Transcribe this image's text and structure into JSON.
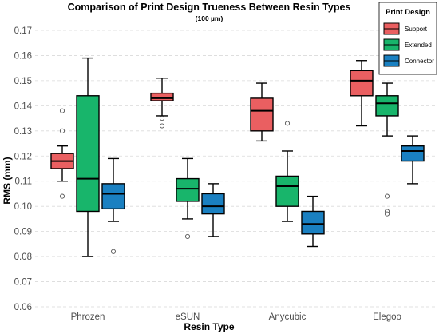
{
  "chart_data": {
    "type": "boxplot",
    "title": "Comparison of Print Design Trueness Between Resin Types",
    "subtitle": "(100 µm)",
    "xlabel": "Resin Type",
    "ylabel": "RMS (mm)",
    "ylim": [
      0.06,
      0.17
    ],
    "yticks": [
      "0.06",
      "0.07",
      "0.08",
      "0.09",
      "0.10",
      "0.11",
      "0.12",
      "0.13",
      "0.14",
      "0.15",
      "0.16",
      "0.17"
    ],
    "grid": true,
    "legend": {
      "title": "Print Design",
      "position": "top-right",
      "entries": [
        "Support",
        "Extended",
        "Connector"
      ]
    },
    "colors": {
      "Support": "#ea5f61",
      "Extended": "#18b56b",
      "Connector": "#1a80c1"
    },
    "categories": [
      "Phrozen",
      "eSUN",
      "Anycubic",
      "Elegoo"
    ],
    "series": [
      {
        "name": "Support",
        "boxes": [
          {
            "whisker_low": 0.11,
            "q1": 0.115,
            "median": 0.118,
            "q3": 0.121,
            "whisker_high": 0.124,
            "outliers": [
              0.104,
              0.13,
              0.138
            ]
          },
          {
            "whisker_low": 0.136,
            "q1": 0.142,
            "median": 0.143,
            "q3": 0.145,
            "whisker_high": 0.151,
            "outliers": [
              0.132,
              0.135
            ]
          },
          {
            "whisker_low": 0.126,
            "q1": 0.13,
            "median": 0.138,
            "q3": 0.143,
            "whisker_high": 0.149,
            "outliers": []
          },
          {
            "whisker_low": 0.132,
            "q1": 0.144,
            "median": 0.15,
            "q3": 0.154,
            "whisker_high": 0.158,
            "outliers": []
          }
        ]
      },
      {
        "name": "Extended",
        "boxes": [
          {
            "whisker_low": 0.08,
            "q1": 0.098,
            "median": 0.111,
            "q3": 0.144,
            "whisker_high": 0.159,
            "outliers": []
          },
          {
            "whisker_low": 0.095,
            "q1": 0.102,
            "median": 0.107,
            "q3": 0.111,
            "whisker_high": 0.119,
            "outliers": [
              0.088
            ]
          },
          {
            "whisker_low": 0.094,
            "q1": 0.1,
            "median": 0.108,
            "q3": 0.112,
            "whisker_high": 0.122,
            "outliers": [
              0.133
            ]
          },
          {
            "whisker_low": 0.128,
            "q1": 0.136,
            "median": 0.141,
            "q3": 0.144,
            "whisker_high": 0.149,
            "outliers": [
              0.104,
              0.098,
              0.097
            ]
          }
        ]
      },
      {
        "name": "Connector",
        "boxes": [
          {
            "whisker_low": 0.094,
            "q1": 0.099,
            "median": 0.105,
            "q3": 0.109,
            "whisker_high": 0.119,
            "outliers": [
              0.082
            ]
          },
          {
            "whisker_low": 0.088,
            "q1": 0.097,
            "median": 0.1,
            "q3": 0.105,
            "whisker_high": 0.109,
            "outliers": []
          },
          {
            "whisker_low": 0.084,
            "q1": 0.089,
            "median": 0.093,
            "q3": 0.098,
            "whisker_high": 0.104,
            "outliers": []
          },
          {
            "whisker_low": 0.109,
            "q1": 0.118,
            "median": 0.122,
            "q3": 0.124,
            "whisker_high": 0.128,
            "outliers": []
          }
        ]
      }
    ]
  }
}
